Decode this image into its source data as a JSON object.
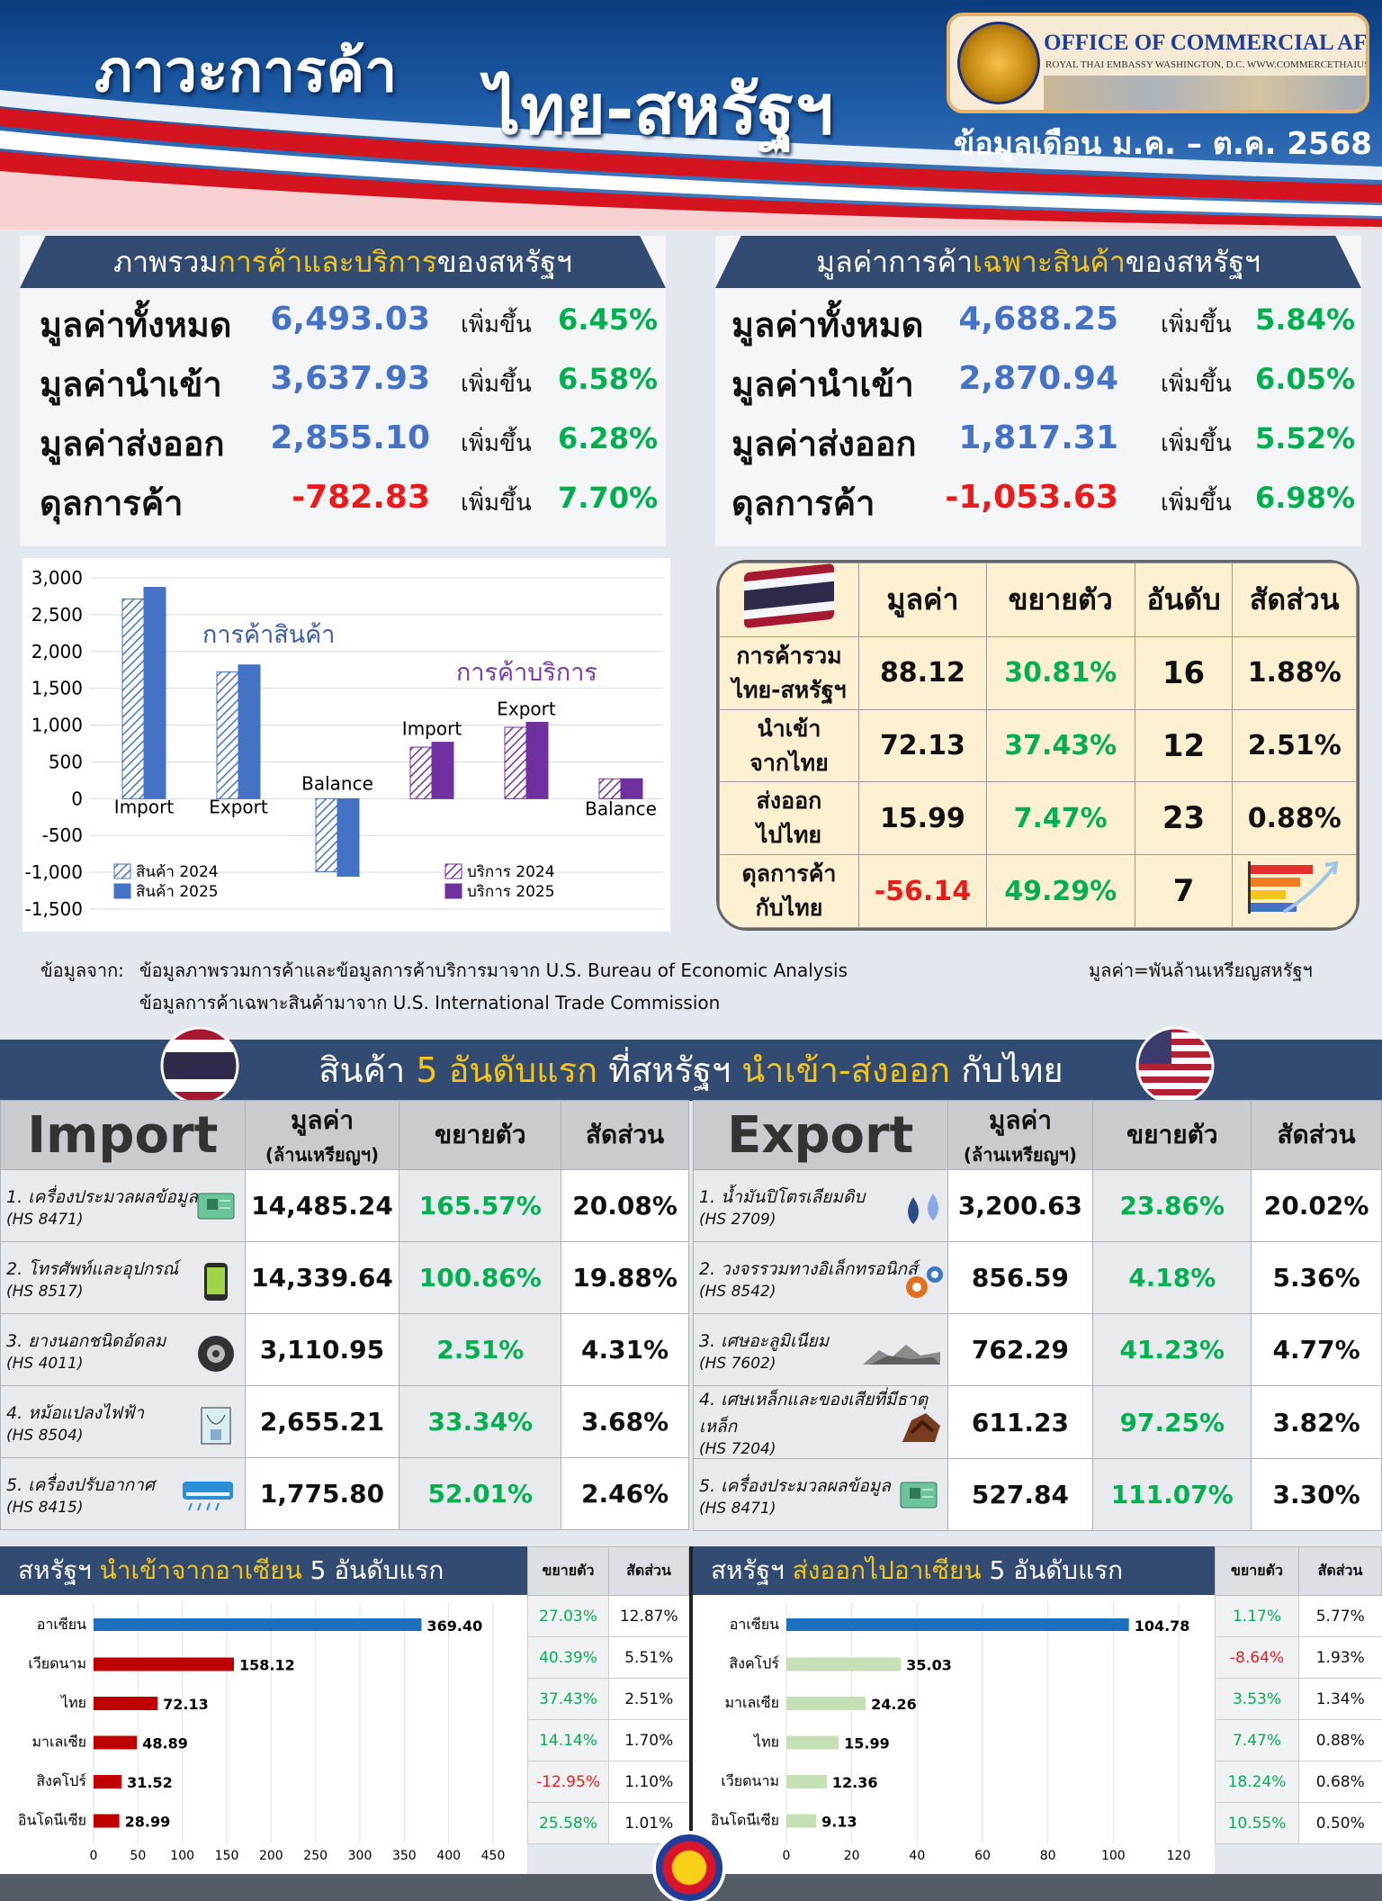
{
  "header": {
    "title_part1": "ภาวะการค้า",
    "title_part2": "ไทย-สหรัฐฯ",
    "period": "ข้อมูลเดือน ม.ค. – ต.ค. 2568",
    "logo_line1": "OFFICE OF COMMERCIAL AFFAIRS",
    "logo_line2": "ROYAL THAI EMBASSY WASHINGTON, D.C.   WWW.COMMERCETHAIUSA.ORG"
  },
  "overview_goods_services": {
    "title_pre": "ภาพรวม",
    "title_hl": "การค้าและบริการ",
    "title_post": "ของสหรัฐฯ",
    "rows": [
      {
        "label": "มูลค่าทั้งหมด",
        "value": "6,493.03",
        "change_label": "เพิ่มขึ้น",
        "change": "6.45%"
      },
      {
        "label": "มูลค่านำเข้า",
        "value": "3,637.93",
        "change_label": "เพิ่มขึ้น",
        "change": "6.58%"
      },
      {
        "label": "มูลค่าส่งออก",
        "value": "2,855.10",
        "change_label": "เพิ่มขึ้น",
        "change": "6.28%"
      },
      {
        "label": "ดุลการค้า",
        "value": "-782.83",
        "change_label": "เพิ่มขึ้น",
        "change": "7.70%"
      }
    ]
  },
  "overview_goods": {
    "title_pre": "มูลค่าการค้า",
    "title_hl": "เฉพาะสินค้า",
    "title_post": "ของสหรัฐฯ",
    "rows": [
      {
        "label": "มูลค่าทั้งหมด",
        "value": "4,688.25",
        "change_label": "เพิ่มขึ้น",
        "change": "5.84%"
      },
      {
        "label": "มูลค่านำเข้า",
        "value": "2,870.94",
        "change_label": "เพิ่มขึ้น",
        "change": "6.05%"
      },
      {
        "label": "มูลค่าส่งออก",
        "value": "1,817.31",
        "change_label": "เพิ่มขึ้น",
        "change": "5.52%"
      },
      {
        "label": "ดุลการค้า",
        "value": "-1,053.63",
        "change_label": "เพิ่มขึ้น",
        "change": "6.98%"
      }
    ]
  },
  "chart_data": [
    {
      "type": "bar",
      "title": "",
      "group_labels": [
        "การค้าสินค้า",
        "การค้าบริการ"
      ],
      "categories": [
        "Import",
        "Export",
        "Balance",
        "Import",
        "Export",
        "Balance"
      ],
      "series": [
        {
          "name": "สินค้า 2024",
          "values": [
            2713,
            1721,
            -992,
            null,
            null,
            null
          ]
        },
        {
          "name": "สินค้า 2025",
          "values": [
            2871,
            1817,
            -1054,
            null,
            null,
            null
          ]
        },
        {
          "name": "บริการ 2024",
          "values": [
            null,
            null,
            null,
            700,
            970,
            270
          ]
        },
        {
          "name": "บริการ 2025",
          "values": [
            null,
            null,
            null,
            767,
            1038,
            271
          ]
        }
      ],
      "yticks": [
        "3,000",
        "2,500",
        "2,000",
        "1,500",
        "1,000",
        "500",
        "0",
        "-500",
        "-1,000",
        "-1,500"
      ],
      "ylim": [
        -1500,
        3000
      ],
      "colors": {
        "goods": "#4472c4",
        "services": "#7030a0"
      }
    },
    {
      "type": "bar",
      "title": "สหรัฐฯ นำเข้าจากอาเซียน 5 อันดับแรก",
      "categories": [
        "อาเซียน",
        "เวียดนาม",
        "ไทย",
        "มาเลเซีย",
        "สิงคโปร์",
        "อินโดนีเซีย"
      ],
      "values": [
        369.4,
        158.12,
        72.13,
        48.89,
        31.52,
        28.99
      ],
      "labels": [
        "369.40",
        "158.12",
        "72.13",
        "48.89",
        "31.52",
        "28.99"
      ],
      "xticks": [
        "0",
        "50",
        "100",
        "150",
        "200",
        "250",
        "300",
        "350",
        "400",
        "450"
      ],
      "xlim": [
        0,
        450
      ]
    },
    {
      "type": "bar",
      "title": "สหรัฐฯ ส่งออกไปอาเซียน 5 อันดับแรก",
      "categories": [
        "อาเซียน",
        "สิงคโปร์",
        "มาเลเซีย",
        "ไทย",
        "เวียดนาม",
        "อินโดนีเซีย"
      ],
      "values": [
        104.78,
        35.03,
        24.26,
        15.99,
        12.36,
        9.13
      ],
      "labels": [
        "104.78",
        "35.03",
        "24.26",
        "15.99",
        "12.36",
        "9.13"
      ],
      "xticks": [
        "0",
        "20",
        "40",
        "60",
        "80",
        "100",
        "120"
      ],
      "xlim": [
        0,
        120
      ]
    }
  ],
  "chart_labels": {
    "goods_group": "การค้าสินค้า",
    "services_group": "การค้าบริการ",
    "legend_goods_2024": "สินค้า 2024",
    "legend_goods_2025": "สินค้า 2025",
    "legend_services_2024": "บริการ 2024",
    "legend_services_2025": "บริการ 2025"
  },
  "thai_table": {
    "headers": [
      "มูลค่า",
      "ขยายตัว",
      "อันดับ",
      "สัดส่วน"
    ],
    "rows": [
      {
        "label1": "การค้ารวม",
        "label2": "ไทย-สหรัฐฯ",
        "value": "88.12",
        "growth": "30.81%",
        "rank": "16",
        "share": "1.88%"
      },
      {
        "label1": "นำเข้า",
        "label2": "จากไทย",
        "value": "72.13",
        "growth": "37.43%",
        "rank": "12",
        "share": "2.51%"
      },
      {
        "label1": "ส่งออก",
        "label2": "ไปไทย",
        "value": "15.99",
        "growth": "7.47%",
        "rank": "23",
        "share": "0.88%"
      },
      {
        "label1": "ดุลการค้า",
        "label2": "กับไทย",
        "value": "-56.14",
        "growth": "49.29%",
        "rank": "7",
        "share": ""
      }
    ]
  },
  "source": {
    "label": "ข้อมูลจาก:",
    "line1": "ข้อมูลภาพรวมการค้าและข้อมูลการค้าบริการมาจาก U.S. Bureau of Economic Analysis",
    "line2": "ข้อมูลการค้าเฉพาะสินค้ามาจาก U.S. International Trade Commission",
    "unit": "มูลค่า=พันล้านเหรียญสหรัฐฯ"
  },
  "top5": {
    "title_pre": "สินค้า",
    "title_hl1": "5 อันดับแรก",
    "title_mid": "ที่สหรัฐฯ",
    "title_hl2": "นำเข้า-ส่งออก",
    "title_post": "กับไทย",
    "col_value": "มูลค่า",
    "col_value_unit": "(ล้านเหรียญฯ)",
    "col_growth": "ขยายตัว",
    "col_share": "สัดส่วน",
    "import_title": "Import",
    "export_title": "Export",
    "imports": [
      {
        "name": "1. เครื่องประมวลผลข้อมูล",
        "hs": "(HS 8471)",
        "value": "14,485.24",
        "growth": "165.57%",
        "share": "20.08%",
        "icon": "circuit-board-icon"
      },
      {
        "name": "2. โทรศัพท์และอุปกรณ์",
        "hs": "(HS 8517)",
        "value": "14,339.64",
        "growth": "100.86%",
        "share": "19.88%",
        "icon": "phone-icon"
      },
      {
        "name": "3. ยางนอกชนิดอัดลม",
        "hs": "(HS 4011)",
        "value": "3,110.95",
        "growth": "2.51%",
        "share": "4.31%",
        "icon": "tire-icon"
      },
      {
        "name": "4. หม้อแปลงไฟฟ้า",
        "hs": "(HS 8504)",
        "value": "2,655.21",
        "growth": "33.34%",
        "share": "3.68%",
        "icon": "transformer-icon"
      },
      {
        "name": "5. เครื่องปรับอากาศ",
        "hs": "(HS 8415)",
        "value": "1,775.80",
        "growth": "52.01%",
        "share": "2.46%",
        "icon": "air-conditioner-icon"
      }
    ],
    "exports": [
      {
        "name": "1. น้ำมันปิโตรเลียมดิบ",
        "hs": "(HS 2709)",
        "value": "3,200.63",
        "growth": "23.86%",
        "share": "20.02%",
        "icon": "oil-drops-icon"
      },
      {
        "name": "2. วงจรรวมทางอิเล็กทรอนิกส์",
        "hs": "(HS 8542)",
        "value": "856.59",
        "growth": "4.18%",
        "share": "5.36%",
        "icon": "gears-icon"
      },
      {
        "name": "3. เศษอะลูมิเนียม",
        "hs": "(HS 7602)",
        "value": "762.29",
        "growth": "41.23%",
        "share": "4.77%",
        "icon": "scrap-icon"
      },
      {
        "name": "4. เศษเหล็กและของเสียที่มีธาตุเหล็ก",
        "hs": "(HS 7204)",
        "value": "611.23",
        "growth": "97.25%",
        "share": "3.82%",
        "icon": "iron-scrap-icon"
      },
      {
        "name": "5. เครื่องประมวลผลข้อมูล",
        "hs": "(HS 8471)",
        "value": "527.84",
        "growth": "111.07%",
        "share": "3.30%",
        "icon": "circuit-board-icon"
      }
    ]
  },
  "asean_import": {
    "title_pre": "สหรัฐฯ",
    "title_hl": "นำเข้าจากอาเซียน",
    "title_post": "5 อันดับแรก",
    "col_growth": "ขยายตัว",
    "col_share": "สัดส่วน",
    "rows": [
      {
        "growth": "27.03%",
        "share": "12.87%",
        "neg": false
      },
      {
        "growth": "40.39%",
        "share": "5.51%",
        "neg": false
      },
      {
        "growth": "37.43%",
        "share": "2.51%",
        "neg": false
      },
      {
        "growth": "14.14%",
        "share": "1.70%",
        "neg": false
      },
      {
        "growth": "-12.95%",
        "share": "1.10%",
        "neg": true
      },
      {
        "growth": "25.58%",
        "share": "1.01%",
        "neg": false
      }
    ]
  },
  "asean_export": {
    "title_pre": "สหรัฐฯ",
    "title_hl": "ส่งออกไปอาเซียน",
    "title_post": "5 อันดับแรก",
    "col_growth": "ขยายตัว",
    "col_share": "สัดส่วน",
    "rows": [
      {
        "growth": "1.17%",
        "share": "5.77%",
        "neg": false
      },
      {
        "growth": "-8.64%",
        "share": "1.93%",
        "neg": true
      },
      {
        "growth": "3.53%",
        "share": "1.34%",
        "neg": false
      },
      {
        "growth": "7.47%",
        "share": "0.88%",
        "neg": false
      },
      {
        "growth": "18.24%",
        "share": "0.68%",
        "neg": false
      },
      {
        "growth": "10.55%",
        "share": "0.50%",
        "neg": false
      }
    ]
  }
}
